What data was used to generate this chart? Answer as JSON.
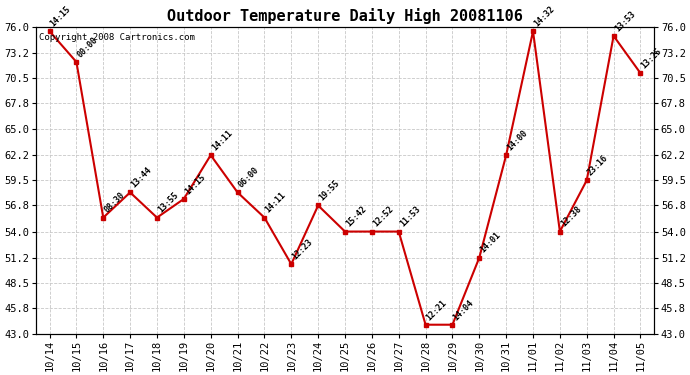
{
  "title": "Outdoor Temperature Daily High 20081106",
  "copyright": "Copyright 2008 Cartronics.com",
  "dates": [
    "10/14",
    "10/15",
    "10/16",
    "10/17",
    "10/18",
    "10/19",
    "10/20",
    "10/21",
    "10/22",
    "10/23",
    "10/24",
    "10/25",
    "10/26",
    "10/27",
    "10/28",
    "10/29",
    "10/30",
    "10/31",
    "11/01",
    "11/02",
    "11/03",
    "11/04",
    "11/05"
  ],
  "y_values": [
    75.5,
    72.2,
    55.5,
    58.2,
    55.5,
    57.5,
    62.2,
    58.2,
    55.5,
    50.5,
    56.8,
    54.0,
    54.0,
    54.0,
    44.0,
    44.0,
    51.2,
    62.2,
    75.5,
    54.0,
    59.5,
    75.0,
    71.0
  ],
  "time_labels": [
    "14:15",
    "00:00",
    "08:30",
    "13:44",
    "13:55",
    "14:15",
    "14:11",
    "06:00",
    "14:11",
    "12:23",
    "19:55",
    "15:42",
    "12:52",
    "11:53",
    "12:21",
    "14:04",
    "14:01",
    "14:00",
    "14:32",
    "12:38",
    "23:16",
    "13:53",
    "13:25"
  ],
  "y_ticks": [
    43.0,
    45.8,
    48.5,
    51.2,
    54.0,
    56.8,
    59.5,
    62.2,
    65.0,
    67.8,
    70.5,
    73.2,
    76.0
  ],
  "y_min": 43.0,
  "y_max": 76.0,
  "line_color": "#cc0000",
  "marker_color": "#cc0000",
  "grid_color": "#c8c8c8",
  "bg_color": "#ffffff",
  "title_fontsize": 11,
  "tick_fontsize": 7.5,
  "annotation_fontsize": 6.0,
  "copyright_fontsize": 6.5
}
